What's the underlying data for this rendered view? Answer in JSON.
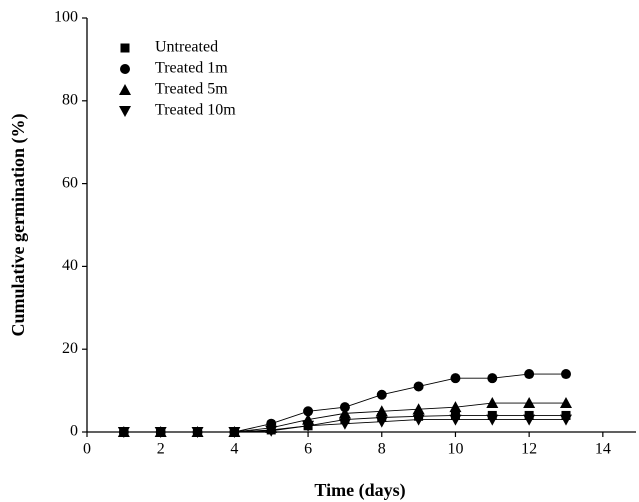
{
  "chart_data": {
    "type": "scatter",
    "xlabel": "Time (days)",
    "ylabel": "Cumulative germination (%)",
    "x": [
      1,
      2,
      3,
      4,
      5,
      6,
      7,
      8,
      9,
      10,
      11,
      12,
      13
    ],
    "series": [
      {
        "name": "Untreated",
        "color": "#000000",
        "marker": "square",
        "values": [
          0,
          0,
          0,
          0,
          0.5,
          1.5,
          3,
          3.5,
          3.8,
          4,
          4,
          4,
          4
        ]
      },
      {
        "name": "Treated 1m",
        "color": "#000000",
        "marker": "circle",
        "values": [
          0,
          0,
          0,
          0,
          2,
          5,
          6,
          9,
          11,
          13,
          13,
          14,
          14
        ]
      },
      {
        "name": "Treated 5m",
        "color": "#000000",
        "marker": "triangle-up",
        "values": [
          0,
          0,
          0,
          0,
          1,
          3,
          4.5,
          5,
          5.5,
          6,
          7,
          7,
          7
        ]
      },
      {
        "name": "Treated 10m",
        "color": "#000000",
        "marker": "triangle-down",
        "values": [
          0,
          0,
          0,
          0,
          0.3,
          1.5,
          2,
          2.5,
          3,
          3,
          3,
          3,
          3
        ]
      }
    ],
    "xlim": [
      0,
      14.9
    ],
    "xticks": [
      0,
      2,
      4,
      6,
      8,
      10,
      12,
      14
    ],
    "ylim": [
      0,
      100
    ],
    "yticks": [
      0,
      20,
      40,
      60,
      80,
      100
    ],
    "legend": "upper-left"
  }
}
